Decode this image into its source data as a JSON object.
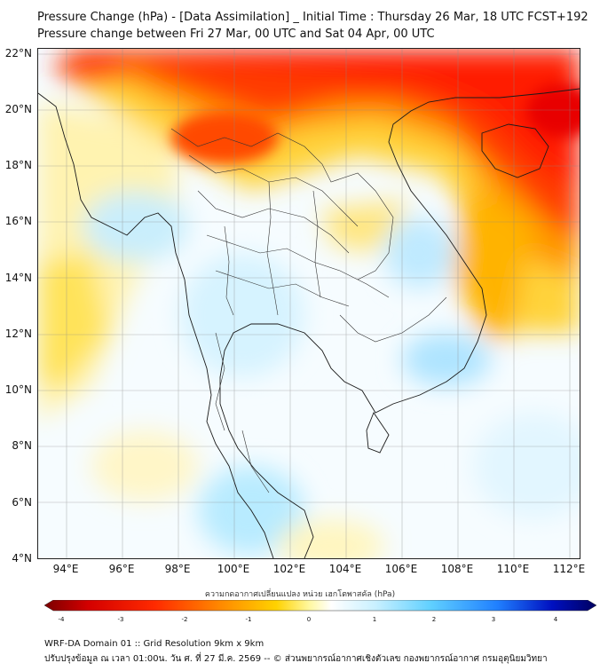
{
  "title_line1": "Pressure Change (hPa) - [Data Assimilation] _ Initial Time : Thursday 26 Mar, 18 UTC FCST+192",
  "title_line2": "Pressure change between Fri 27 Mar, 00 UTC and Sat 04 Apr, 00 UTC",
  "lat_labels": [
    "22°N",
    "20°N",
    "18°N",
    "16°N",
    "14°N",
    "12°N",
    "10°N",
    "8°N",
    "6°N",
    "4°N"
  ],
  "lon_labels": [
    "94°E",
    "96°E",
    "98°E",
    "100°E",
    "102°E",
    "104°E",
    "106°E",
    "108°E",
    "110°E",
    "112°E"
  ],
  "colorbar": {
    "title": "ความกดอากาศเปลี่ยนแปลง หน่วย เฮกโตพาสคัล (hPa)",
    "ticks": [
      "-4",
      "-3",
      "-2",
      "-1",
      "0",
      "1",
      "2",
      "3",
      "4"
    ],
    "colors": [
      "#7a0000",
      "#d40000",
      "#ff2a00",
      "#ff8a00",
      "#ffd200",
      "#fff8a0",
      "#ffffff",
      "#c8f0ff",
      "#60d0ff",
      "#2080ff",
      "#0010c0",
      "#000060"
    ]
  },
  "footer_line1": "WRF-DA Domain 01 :: Grid Resolution 9km x 9km",
  "footer_line2": "ปรับปรุงข้อมูล ณ เวลา 01:00น. วัน ศ. ที่ 27 มี.ค. 2569 -- © ส่วนพยากรณ์อากาศเชิงตัวเลข กองพยากรณ์อากาศ กรมอุตุนิยมวิทยา"
}
